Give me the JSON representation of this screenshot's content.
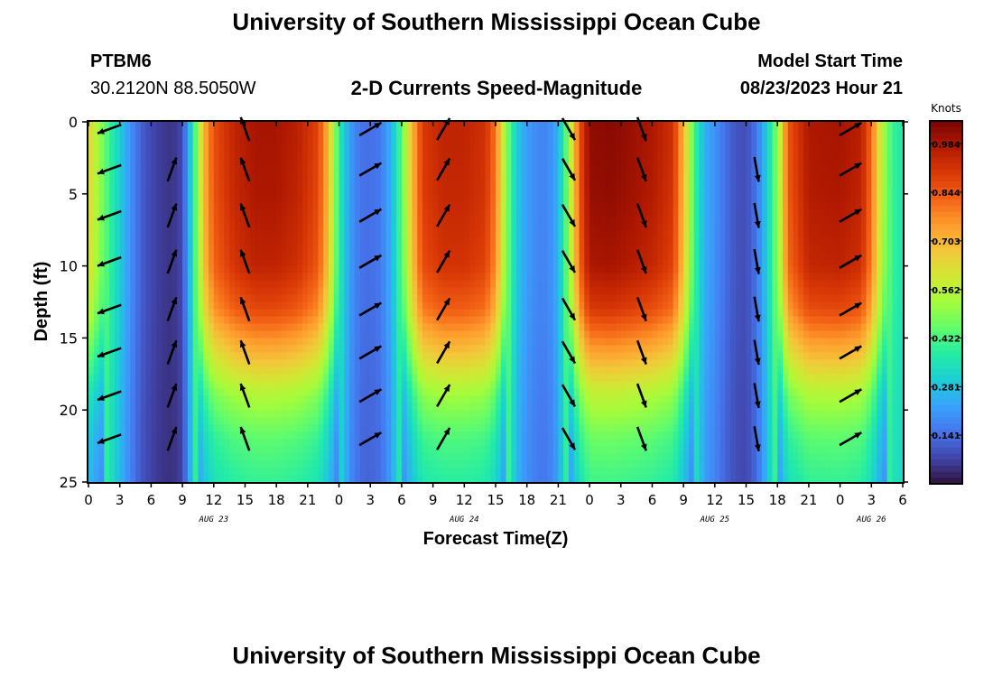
{
  "header": {
    "title": "University of Southern Mississippi Ocean Cube",
    "station": "PTBM6",
    "coords": "30.2120N  88.5050W",
    "subtitle": "2-D Currents Speed-Magnitude",
    "model_start_label": "Model Start Time",
    "model_start_value": "08/23/2023 Hour 21",
    "footer_title": "University of Southern Mississippi Ocean Cube"
  },
  "colors": {
    "scale": [
      "#30123b",
      "#4145ab",
      "#4675ed",
      "#39a2fc",
      "#1bcfd4",
      "#24eca6",
      "#61fc6c",
      "#a4fc3b",
      "#d1e834",
      "#f3c63a",
      "#fe9b2d",
      "#f36315",
      "#d93806",
      "#b11901",
      "#7a0403"
    ],
    "arrow": "#000000"
  },
  "chart_data": {
    "type": "heatmap",
    "title": "2-D Currents Speed-Magnitude",
    "xlabel": "Forecast Time(Z)",
    "ylabel": "Depth (ft)",
    "x_tick_labels": [
      "0",
      "3",
      "6",
      "9",
      "12",
      "15",
      "18",
      "21",
      "0",
      "3",
      "6",
      "9",
      "12",
      "15",
      "18",
      "21",
      "0",
      "3",
      "6",
      "9",
      "12",
      "15",
      "18",
      "21",
      "0",
      "3",
      "6"
    ],
    "date_labels": [
      {
        "label": "AUG 23",
        "hour": 12
      },
      {
        "label": "AUG 24",
        "hour": 36
      },
      {
        "label": "AUG 25",
        "hour": 60
      },
      {
        "label": "AUG 26",
        "hour": 75
      }
    ],
    "y_ticks": [
      0,
      5,
      10,
      15,
      20,
      25
    ],
    "ylim": [
      0,
      25
    ],
    "xlim": [
      0,
      78
    ],
    "x_units": "hours since AUG 23 00Z",
    "colorbar": {
      "units": "Knots",
      "tick_labels": [
        "0.984",
        "0.844",
        "0.703",
        "0.562",
        "0.422",
        "0.281",
        "0.141"
      ],
      "range": [
        0.0,
        1.05
      ]
    },
    "speed_profile_by_hour": [
      [
        0,
        0.66
      ],
      [
        1,
        0.52
      ],
      [
        2,
        0.4
      ],
      [
        3,
        0.3
      ],
      [
        4,
        0.2
      ],
      [
        5,
        0.12
      ],
      [
        6,
        0.08
      ],
      [
        7,
        0.06
      ],
      [
        8,
        0.05
      ],
      [
        9,
        0.08
      ],
      [
        10,
        0.35
      ],
      [
        11,
        0.7
      ],
      [
        12,
        0.86
      ],
      [
        14,
        0.95
      ],
      [
        16,
        0.99
      ],
      [
        18,
        0.99
      ],
      [
        20,
        0.96
      ],
      [
        22,
        0.88
      ],
      [
        23,
        0.7
      ],
      [
        24,
        0.38
      ],
      [
        25,
        0.22
      ],
      [
        26,
        0.15
      ],
      [
        27,
        0.14
      ],
      [
        28,
        0.16
      ],
      [
        29,
        0.25
      ],
      [
        30,
        0.45
      ],
      [
        31,
        0.7
      ],
      [
        32,
        0.9
      ],
      [
        34,
        0.95
      ],
      [
        36,
        0.95
      ],
      [
        38,
        0.92
      ],
      [
        39,
        0.8
      ],
      [
        40,
        0.5
      ],
      [
        41,
        0.3
      ],
      [
        42,
        0.22
      ],
      [
        43,
        0.18
      ],
      [
        44,
        0.18
      ],
      [
        45,
        0.25
      ],
      [
        46,
        0.5
      ],
      [
        47,
        0.85
      ],
      [
        48,
        1.02
      ],
      [
        50,
        1.03
      ],
      [
        52,
        1.01
      ],
      [
        54,
        0.98
      ],
      [
        56,
        0.92
      ],
      [
        57,
        0.7
      ],
      [
        58,
        0.42
      ],
      [
        59,
        0.25
      ],
      [
        60,
        0.2
      ],
      [
        61,
        0.14
      ],
      [
        62,
        0.1
      ],
      [
        63,
        0.09
      ],
      [
        64,
        0.15
      ],
      [
        65,
        0.3
      ],
      [
        66,
        0.5
      ],
      [
        67,
        0.85
      ],
      [
        69,
        0.98
      ],
      [
        72,
        0.99
      ],
      [
        74,
        0.96
      ],
      [
        75,
        0.82
      ],
      [
        76,
        0.55
      ],
      [
        77,
        0.4
      ],
      [
        78,
        0.36
      ]
    ],
    "depth_attenuation": [
      [
        0,
        1.0
      ],
      [
        5,
        0.99
      ],
      [
        10,
        0.96
      ],
      [
        13,
        0.88
      ],
      [
        16,
        0.72
      ],
      [
        19,
        0.55
      ],
      [
        22,
        0.45
      ],
      [
        25,
        0.4
      ]
    ],
    "vectors": [
      {
        "hour": 2,
        "depths": [
          0.5,
          3.3,
          6.5,
          9.7,
          13,
          16,
          19,
          22
        ],
        "angle_deg": 200,
        "note": "arrows pointing left-down near t=2"
      },
      {
        "hour": 8,
        "depths": [
          3.3,
          6.5,
          9.7,
          13,
          16,
          19,
          22
        ],
        "angle_deg": 70
      },
      {
        "hour": 15,
        "depths": [
          0.5,
          3.3,
          6.5,
          9.7,
          13,
          16,
          19,
          22
        ],
        "angle_deg": 110
      },
      {
        "hour": 27,
        "depths": [
          0.5,
          3.3,
          6.5,
          9.7,
          13,
          16,
          19,
          22
        ],
        "angle_deg": 30
      },
      {
        "hour": 34,
        "depths": [
          0.5,
          3.3,
          6.5,
          9.7,
          13,
          16,
          19,
          22
        ],
        "angle_deg": 60
      },
      {
        "hour": 46,
        "depths": [
          0.5,
          3.3,
          6.5,
          9.7,
          13,
          16,
          19,
          22
        ],
        "angle_deg": 300
      },
      {
        "hour": 53,
        "depths": [
          0.5,
          3.3,
          6.5,
          9.7,
          13,
          16,
          19,
          22
        ],
        "angle_deg": 290
      },
      {
        "hour": 64,
        "depths": [
          3.3,
          6.5,
          9.7,
          13,
          16,
          19,
          22
        ],
        "angle_deg": 280
      },
      {
        "hour": 73,
        "depths": [
          0.5,
          3.3,
          6.5,
          9.7,
          13,
          16,
          19,
          22
        ],
        "angle_deg": 30
      }
    ]
  }
}
